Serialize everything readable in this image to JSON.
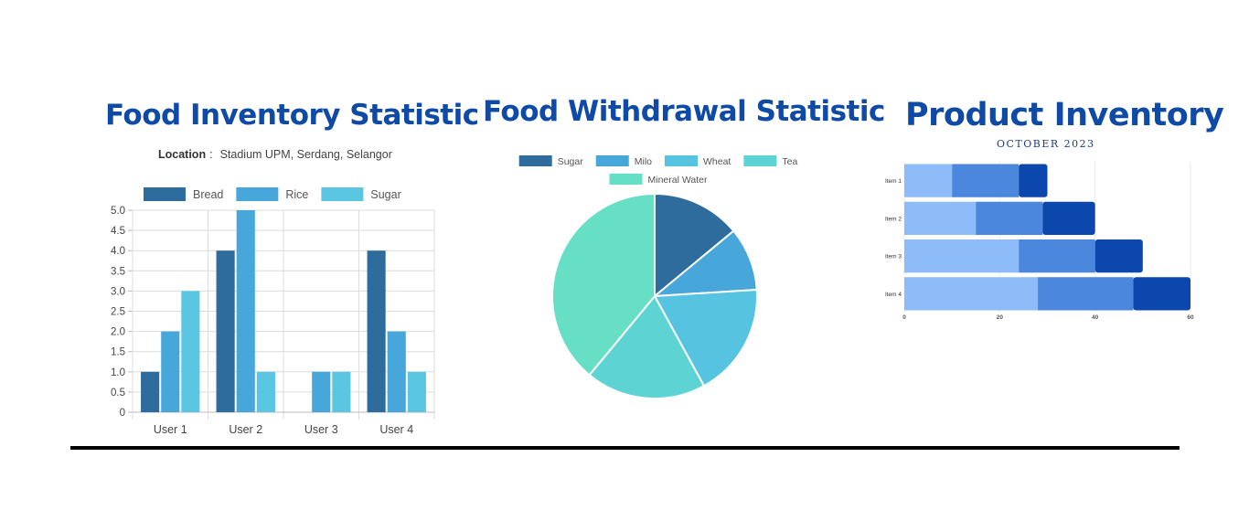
{
  "charts": {
    "inventory": {
      "title": "Food Inventory Statistic",
      "location_label": "Location",
      "location_value": "Stadium UPM, Serdang, Selangor"
    },
    "withdrawal": {
      "title": "Food Withdrawal Statistic"
    },
    "product": {
      "title": "Product Inventory",
      "subtitle": "OCTOBER 2023"
    }
  },
  "chart_data": [
    {
      "type": "bar",
      "title": "Food Inventory Statistic",
      "subtitle": "Location :  Stadium UPM, Serdang, Selangor",
      "categories": [
        "User 1",
        "User 2",
        "User 3",
        "User 4"
      ],
      "series": [
        {
          "name": "Bread",
          "values": [
            1,
            4,
            0,
            4
          ],
          "color": "#2e6c9d"
        },
        {
          "name": "Rice",
          "values": [
            2,
            5,
            1,
            2
          ],
          "color": "#47a7da"
        },
        {
          "name": "Sugar",
          "values": [
            3,
            1,
            1,
            1
          ],
          "color": "#5bc6e2"
        }
      ],
      "ylim": [
        0,
        5
      ],
      "yticks": [
        "0",
        "0.5",
        "1.0",
        "1.5",
        "2.0",
        "2.5",
        "3.0",
        "3.5",
        "4.0",
        "4.5",
        "5.0"
      ],
      "grid": true,
      "legend": "top"
    },
    {
      "type": "pie",
      "title": "Food Withdrawal Statistic",
      "labels": [
        "Sugar",
        "Milo",
        "Wheat",
        "Tea",
        "Mineral Water"
      ],
      "values": [
        14,
        10,
        18,
        19,
        39
      ],
      "colors": [
        "#2e6c9d",
        "#47a7da",
        "#56c4e1",
        "#5dd3d3",
        "#67dfc4"
      ],
      "legend": "top"
    },
    {
      "type": "bar",
      "orientation": "horizontal",
      "stacked": true,
      "title": "Product Inventory",
      "subtitle": "OCTOBER 2023",
      "categories": [
        "Item 1",
        "Item 2",
        "Item 3",
        "Item 4"
      ],
      "series": [
        {
          "values": [
            10,
            15,
            24,
            28
          ],
          "color": "#8ebcf9"
        },
        {
          "values": [
            14,
            14,
            16,
            20
          ],
          "color": "#4a87dd"
        },
        {
          "values": [
            6,
            11,
            10,
            12
          ],
          "color": "#0b47ad"
        }
      ],
      "xlim": [
        0,
        60
      ],
      "xticks": [
        "0",
        "20",
        "40",
        "60"
      ],
      "grid": true
    }
  ]
}
